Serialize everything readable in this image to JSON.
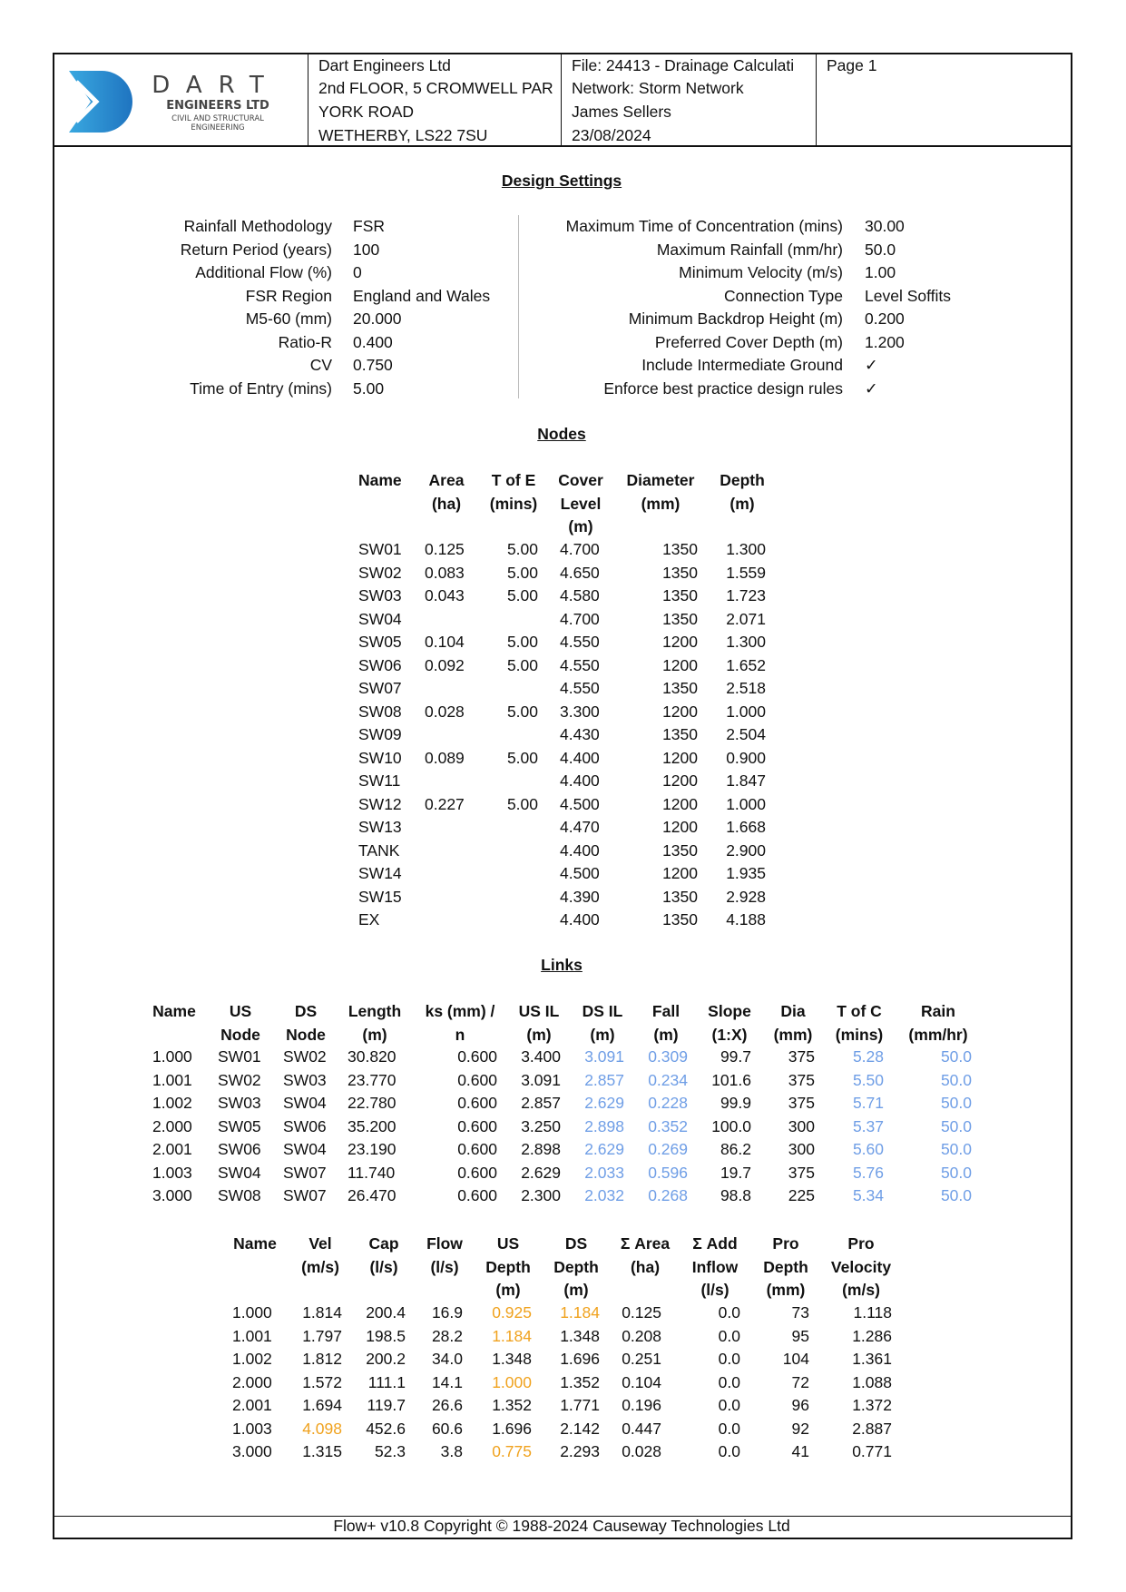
{
  "header": {
    "logo": {
      "word": "DART",
      "line1": "ENGINEERS LTD",
      "line2": "CIVIL AND STRUCTURAL",
      "line3": "ENGINEERING",
      "color": "#2a8fd4"
    },
    "company": [
      "Dart Engineers Ltd",
      "2nd FLOOR, 5 CROMWELL PAR",
      "YORK ROAD",
      "WETHERBY, LS22 7SU"
    ],
    "file": [
      "File: 24413 - Drainage Calculati",
      "Network: Storm Network",
      "James Sellers",
      "23/08/2024"
    ],
    "page": "Page 1"
  },
  "design_settings": {
    "title": "Design Settings",
    "left": [
      {
        "label": "Rainfall Methodology",
        "value": "FSR"
      },
      {
        "label": "Return Period (years)",
        "value": "100"
      },
      {
        "label": "Additional Flow (%)",
        "value": "0"
      },
      {
        "label": "FSR Region",
        "value": "England and Wales"
      },
      {
        "label": "M5-60 (mm)",
        "value": "20.000"
      },
      {
        "label": "Ratio-R",
        "value": "0.400"
      },
      {
        "label": "CV",
        "value": "0.750"
      },
      {
        "label": "Time of Entry (mins)",
        "value": "5.00"
      }
    ],
    "right": [
      {
        "label": "Maximum Time of Concentration (mins)",
        "value": "30.00"
      },
      {
        "label": "Maximum Rainfall (mm/hr)",
        "value": "50.0"
      },
      {
        "label": "Minimum Velocity (m/s)",
        "value": "1.00"
      },
      {
        "label": "Connection Type",
        "value": "Level Soffits"
      },
      {
        "label": "Minimum Backdrop Height (m)",
        "value": "0.200"
      },
      {
        "label": "Preferred Cover Depth (m)",
        "value": "1.200"
      },
      {
        "label": "Include Intermediate Ground",
        "value": "✓"
      },
      {
        "label": "Enforce best practice design rules",
        "value": "✓"
      }
    ]
  },
  "nodes": {
    "title": "Nodes",
    "headers": [
      [
        "Name"
      ],
      [
        "Area",
        "(ha)"
      ],
      [
        "T of E",
        "(mins)"
      ],
      [
        "Cover",
        "Level",
        "(m)"
      ],
      [
        "Diameter",
        "(mm)"
      ],
      [
        "Depth",
        "(m)"
      ]
    ],
    "rows": [
      [
        "SW01",
        "0.125",
        "5.00",
        "4.700",
        "1350",
        "1.300"
      ],
      [
        "SW02",
        "0.083",
        "5.00",
        "4.650",
        "1350",
        "1.559"
      ],
      [
        "SW03",
        "0.043",
        "5.00",
        "4.580",
        "1350",
        "1.723"
      ],
      [
        "SW04",
        "",
        "",
        "4.700",
        "1350",
        "2.071"
      ],
      [
        "SW05",
        "0.104",
        "5.00",
        "4.550",
        "1200",
        "1.300"
      ],
      [
        "SW06",
        "0.092",
        "5.00",
        "4.550",
        "1200",
        "1.652"
      ],
      [
        "SW07",
        "",
        "",
        "4.550",
        "1350",
        "2.518"
      ],
      [
        "SW08",
        "0.028",
        "5.00",
        "3.300",
        "1200",
        "1.000"
      ],
      [
        "SW09",
        "",
        "",
        "4.430",
        "1350",
        "2.504"
      ],
      [
        "SW10",
        "0.089",
        "5.00",
        "4.400",
        "1200",
        "0.900"
      ],
      [
        "SW11",
        "",
        "",
        "4.400",
        "1200",
        "1.847"
      ],
      [
        "SW12",
        "0.227",
        "5.00",
        "4.500",
        "1200",
        "1.000"
      ],
      [
        "SW13",
        "",
        "",
        "4.470",
        "1200",
        "1.668"
      ],
      [
        "TANK",
        "",
        "",
        "4.400",
        "1350",
        "2.900"
      ],
      [
        "SW14",
        "",
        "",
        "4.500",
        "1200",
        "1.935"
      ],
      [
        "SW15",
        "",
        "",
        "4.390",
        "1350",
        "2.928"
      ],
      [
        "EX",
        "",
        "",
        "4.400",
        "1350",
        "4.188"
      ]
    ]
  },
  "links": {
    "title": "Links",
    "headers": [
      [
        "Name"
      ],
      [
        "US",
        "Node"
      ],
      [
        "DS",
        "Node"
      ],
      [
        "Length",
        "(m)"
      ],
      [
        "ks (mm) /",
        "n"
      ],
      [
        "US IL",
        "(m)"
      ],
      [
        "DS IL",
        "(m)"
      ],
      [
        "Fall",
        "(m)"
      ],
      [
        "Slope",
        "(1:X)"
      ],
      [
        "Dia",
        "(mm)"
      ],
      [
        "T of C",
        "(mins)"
      ],
      [
        "Rain",
        "(mm/hr)"
      ]
    ],
    "blue_columns": [
      6,
      7,
      10,
      11
    ],
    "rows": [
      [
        "1.000",
        "SW01",
        "SW02",
        "30.820",
        "0.600",
        "3.400",
        "3.091",
        "0.309",
        "99.7",
        "375",
        "5.28",
        "50.0"
      ],
      [
        "1.001",
        "SW02",
        "SW03",
        "23.770",
        "0.600",
        "3.091",
        "2.857",
        "0.234",
        "101.6",
        "375",
        "5.50",
        "50.0"
      ],
      [
        "1.002",
        "SW03",
        "SW04",
        "22.780",
        "0.600",
        "2.857",
        "2.629",
        "0.228",
        "99.9",
        "375",
        "5.71",
        "50.0"
      ],
      [
        "2.000",
        "SW05",
        "SW06",
        "35.200",
        "0.600",
        "3.250",
        "2.898",
        "0.352",
        "100.0",
        "300",
        "5.37",
        "50.0"
      ],
      [
        "2.001",
        "SW06",
        "SW04",
        "23.190",
        "0.600",
        "2.898",
        "2.629",
        "0.269",
        "86.2",
        "300",
        "5.60",
        "50.0"
      ],
      [
        "1.003",
        "SW04",
        "SW07",
        "11.740",
        "0.600",
        "2.629",
        "2.033",
        "0.596",
        "19.7",
        "375",
        "5.76",
        "50.0"
      ],
      [
        "3.000",
        "SW08",
        "SW07",
        "26.470",
        "0.600",
        "2.300",
        "2.032",
        "0.268",
        "98.8",
        "225",
        "5.34",
        "50.0"
      ]
    ]
  },
  "results": {
    "headers": [
      [
        "Name"
      ],
      [
        "Vel",
        "(m/s)"
      ],
      [
        "Cap",
        "(l/s)"
      ],
      [
        "Flow",
        "(l/s)"
      ],
      [
        "US",
        "Depth",
        "(m)"
      ],
      [
        "DS",
        "Depth",
        "(m)"
      ],
      [
        "Σ Area",
        "(ha)"
      ],
      [
        "Σ Add",
        "Inflow",
        "(l/s)"
      ],
      [
        "Pro",
        "Depth",
        "(mm)"
      ],
      [
        "Pro",
        "Velocity",
        "(m/s)"
      ]
    ],
    "rows": [
      [
        "1.000",
        "1.814",
        "200.4",
        "16.9",
        "0.925",
        "1.184",
        "0.125",
        "0.0",
        "73",
        "1.118"
      ],
      [
        "1.001",
        "1.797",
        "198.5",
        "28.2",
        "1.184",
        "1.348",
        "0.208",
        "0.0",
        "95",
        "1.286"
      ],
      [
        "1.002",
        "1.812",
        "200.2",
        "34.0",
        "1.348",
        "1.696",
        "0.251",
        "0.0",
        "104",
        "1.361"
      ],
      [
        "2.000",
        "1.572",
        "111.1",
        "14.1",
        "1.000",
        "1.352",
        "0.104",
        "0.0",
        "72",
        "1.088"
      ],
      [
        "2.001",
        "1.694",
        "119.7",
        "26.6",
        "1.352",
        "1.771",
        "0.196",
        "0.0",
        "96",
        "1.372"
      ],
      [
        "1.003",
        "4.098",
        "452.6",
        "60.6",
        "1.696",
        "2.142",
        "0.447",
        "0.0",
        "92",
        "2.887"
      ],
      [
        "3.000",
        "1.315",
        "52.3",
        "3.8",
        "0.775",
        "2.293",
        "0.028",
        "0.0",
        "41",
        "0.771"
      ]
    ],
    "orange_cells": [
      [
        0,
        4
      ],
      [
        0,
        5
      ],
      [
        1,
        4
      ],
      [
        3,
        4
      ],
      [
        5,
        1
      ],
      [
        6,
        4
      ]
    ]
  },
  "colors": {
    "blue": "#6f9ee6",
    "orange": "#f0a21e"
  },
  "footer": "Flow+ v10.8 Copyright © 1988-2024 Causeway Technologies Ltd"
}
